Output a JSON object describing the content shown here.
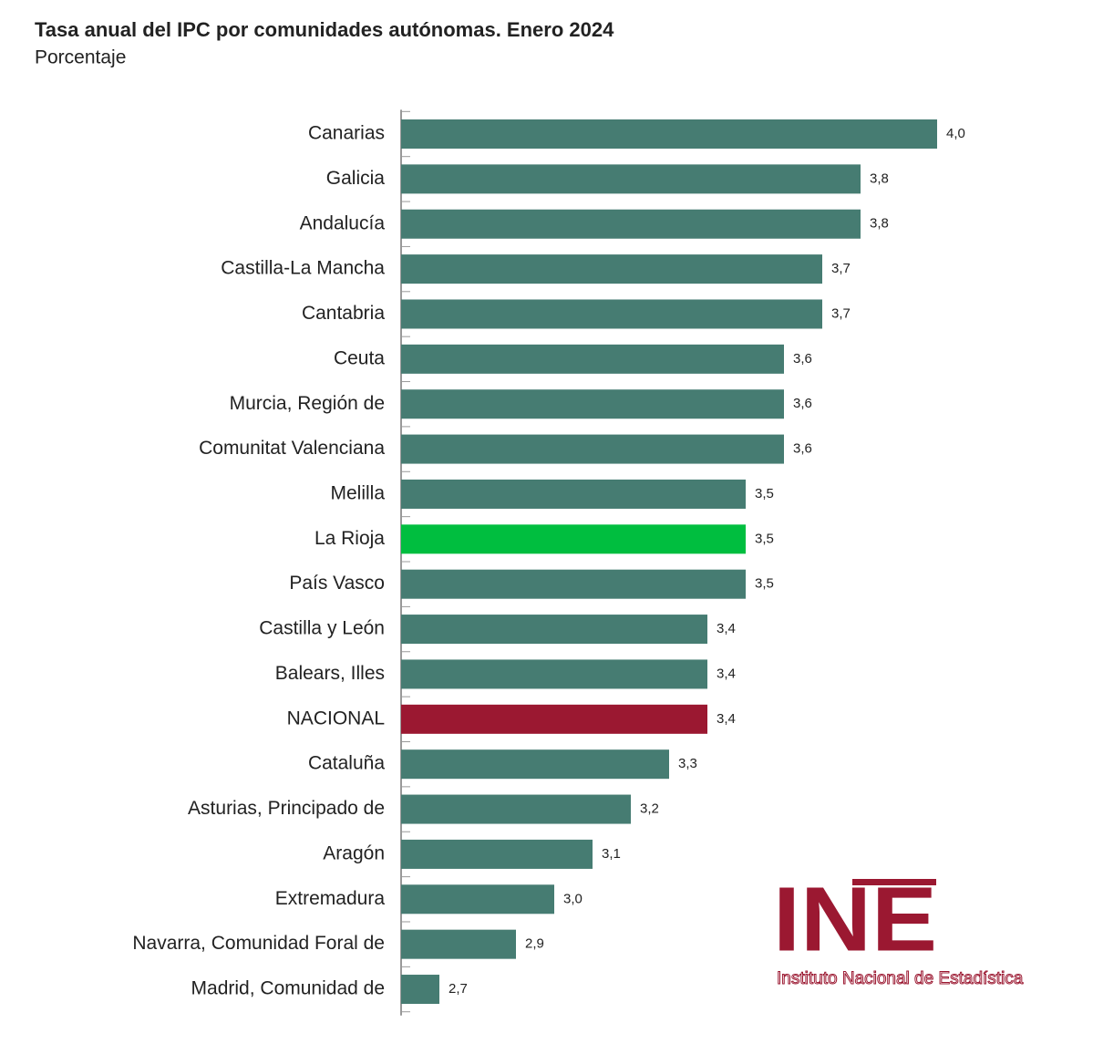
{
  "chart_data": {
    "type": "bar",
    "orientation": "horizontal",
    "title": "Tasa anual del IPC por comunidades autónomas. Enero 2024",
    "subtitle": "Porcentaje",
    "categories": [
      "Canarias",
      "Galicia",
      "Andalucía",
      "Castilla-La Mancha",
      "Cantabria",
      "Ceuta",
      "Murcia, Región de",
      "Comunitat Valenciana",
      "Melilla",
      "La Rioja",
      "País Vasco",
      "Castilla y León",
      "Balears, Illes",
      "NACIONAL",
      "Cataluña",
      "Asturias, Principado de",
      "Aragón",
      "Extremadura",
      "Navarra, Comunidad Foral de",
      "Madrid, Comunidad de"
    ],
    "values": [
      4.0,
      3.8,
      3.8,
      3.7,
      3.7,
      3.6,
      3.6,
      3.6,
      3.5,
      3.5,
      3.5,
      3.4,
      3.4,
      3.4,
      3.3,
      3.2,
      3.1,
      3.0,
      2.9,
      2.7
    ],
    "value_labels": [
      "4,0",
      "3,8",
      "3,8",
      "3,7",
      "3,7",
      "3,6",
      "3,6",
      "3,6",
      "3,5",
      "3,5",
      "3,5",
      "3,4",
      "3,4",
      "3,4",
      "3,3",
      "3,2",
      "3,1",
      "3,0",
      "2,9",
      "2,7"
    ],
    "colors": [
      "#467c72",
      "#467c72",
      "#467c72",
      "#467c72",
      "#467c72",
      "#467c72",
      "#467c72",
      "#467c72",
      "#467c72",
      "#00be3f",
      "#467c72",
      "#467c72",
      "#467c72",
      "#9b1831",
      "#467c72",
      "#467c72",
      "#467c72",
      "#467c72",
      "#467c72",
      "#467c72"
    ],
    "xlim": [
      2.6,
      4.0
    ]
  },
  "logo": {
    "mark": "INE",
    "caption": "Instituto Nacional de Estadística"
  }
}
